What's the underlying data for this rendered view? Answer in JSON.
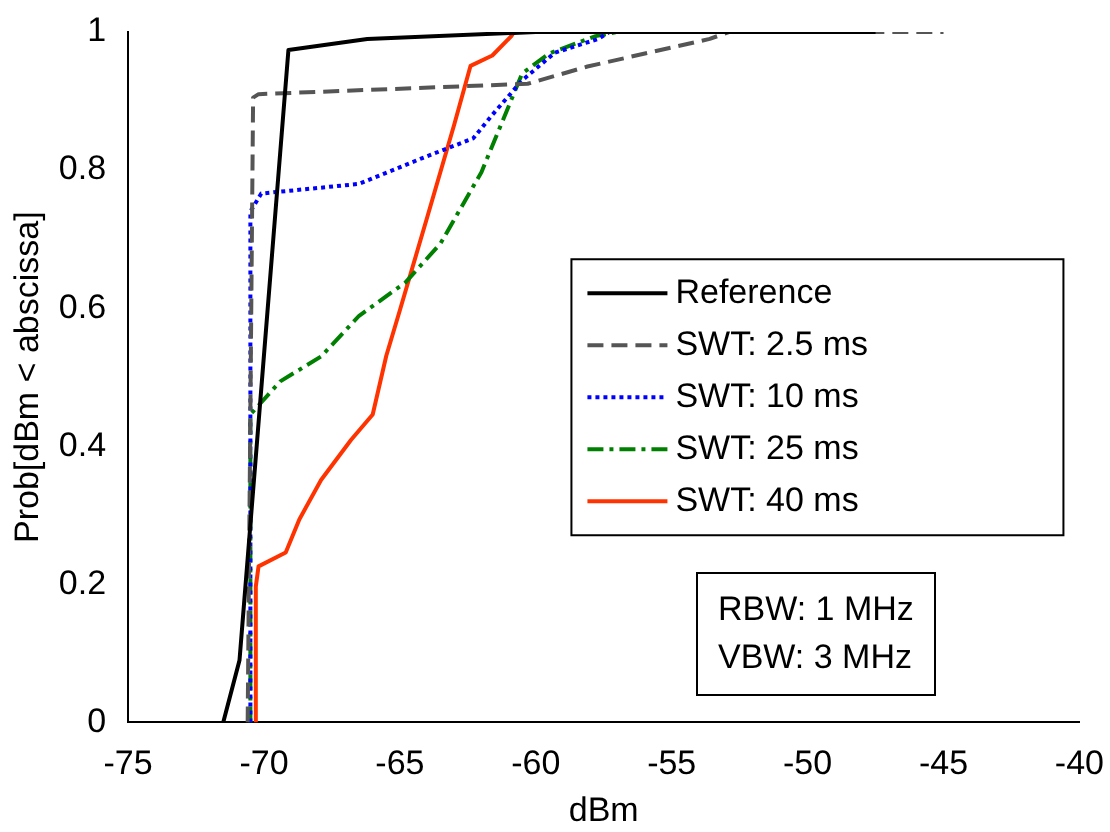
{
  "chart_data": {
    "type": "line",
    "xlabel": "dBm",
    "ylabel": "Prob[dBm < abscissa]",
    "xlim": [
      -75,
      -40
    ],
    "xticks": [
      -75,
      -70,
      -65,
      -60,
      -55,
      -50,
      -45,
      -40
    ],
    "ylim": [
      0,
      1
    ],
    "yticks": [
      0,
      0.2,
      0.4,
      0.6,
      0.8,
      1
    ],
    "grid": false,
    "legend": "right",
    "marker": "none",
    "series": [
      {
        "name": "Reference",
        "color": "#000000",
        "line_style": "solid",
        "x": [
          -71.5,
          -70.9,
          -69.1,
          -66.2,
          -60,
          -47.5
        ],
        "values": [
          0,
          0.09,
          0.974,
          0.99,
          1,
          1
        ]
      },
      {
        "name": "SWT: 2.5 ms",
        "color": "#555555",
        "line_style": "dashed",
        "x": [
          -70.6,
          -70.4,
          -70.2,
          -60.3,
          -58.1,
          -53.6,
          -52.9,
          -45
        ],
        "values": [
          0,
          0.905,
          0.91,
          0.925,
          0.95,
          0.99,
          1,
          1
        ]
      },
      {
        "name": "SWT: 10 ms",
        "color": "#0000ff",
        "line_style": "dotted",
        "x": [
          -70.5,
          -70.5,
          -70.1,
          -66.5,
          -64.2,
          -62.3,
          -61.6,
          -60.5,
          -59.3,
          -57.7,
          -57.3
        ],
        "values": [
          0,
          0.74,
          0.766,
          0.78,
          0.817,
          0.846,
          0.88,
          0.93,
          0.97,
          0.99,
          1
        ]
      },
      {
        "name": "SWT: 25 ms",
        "color": "#008000",
        "line_style": "dashdot",
        "x": [
          -70.5,
          -70.5,
          -69.4,
          -67.9,
          -66.5,
          -64.8,
          -63.5,
          -62,
          -60.5,
          -59.5,
          -57.8,
          -57
        ],
        "values": [
          0,
          0.446,
          0.494,
          0.53,
          0.589,
          0.637,
          0.694,
          0.797,
          0.94,
          0.969,
          0.994,
          1
        ]
      },
      {
        "name": "SWT: 40 ms",
        "color": "#ff3300",
        "line_style": "solid",
        "x": [
          -70.3,
          -70.3,
          -70.2,
          -69.2,
          -68.7,
          -67.9,
          -66.8,
          -66,
          -65.5,
          -65,
          -64,
          -63,
          -62.4,
          -61.6,
          -60.9,
          -60.8
        ],
        "values": [
          0,
          0.197,
          0.226,
          0.246,
          0.294,
          0.351,
          0.409,
          0.446,
          0.531,
          0.597,
          0.731,
          0.866,
          0.951,
          0.966,
          0.994,
          1
        ]
      }
    ],
    "annotations": [
      "RBW: 1 MHz",
      "VBW: 3 MHz"
    ]
  }
}
